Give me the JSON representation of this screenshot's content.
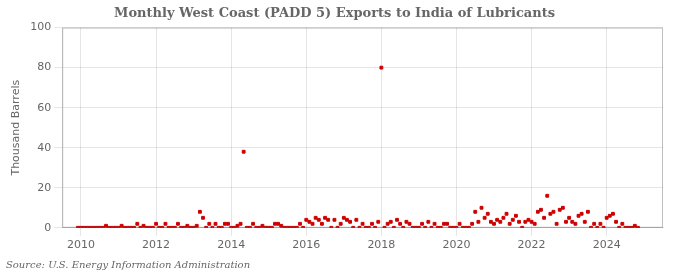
{
  "chart_data": {
    "type": "scatter",
    "title": "Monthly West Coast (PADD 5) Exports to India of Lubricants",
    "ylabel": "Thousand Barrels",
    "annotation": "Source: U.S. Energy Information Administration",
    "color": "#cc0000",
    "marker": "square",
    "grid": true,
    "xlim": [
      2009.5,
      2025.5
    ],
    "xticks": [
      2010,
      2012,
      2014,
      2016,
      2018,
      2020,
      2022,
      2024
    ],
    "ylim": [
      0,
      100
    ],
    "yticks": [
      0,
      20,
      40,
      60,
      80,
      100
    ],
    "x": [
      2009.917,
      2010,
      2010.083,
      2010.167,
      2010.25,
      2010.333,
      2010.417,
      2010.5,
      2010.583,
      2010.667,
      2010.75,
      2010.833,
      2010.917,
      2011,
      2011.083,
      2011.167,
      2011.25,
      2011.333,
      2011.417,
      2011.5,
      2011.583,
      2011.667,
      2011.75,
      2011.833,
      2011.917,
      2012,
      2012.083,
      2012.167,
      2012.25,
      2012.333,
      2012.417,
      2012.5,
      2012.583,
      2012.667,
      2012.75,
      2012.833,
      2012.917,
      2013,
      2013.083,
      2013.167,
      2013.25,
      2013.333,
      2013.417,
      2013.5,
      2013.583,
      2013.667,
      2013.75,
      2013.833,
      2013.917,
      2014,
      2014.083,
      2014.167,
      2014.25,
      2014.333,
      2014.417,
      2014.5,
      2014.583,
      2014.667,
      2014.75,
      2014.833,
      2014.917,
      2015,
      2015.083,
      2015.167,
      2015.25,
      2015.333,
      2015.417,
      2015.5,
      2015.583,
      2015.667,
      2015.75,
      2015.833,
      2015.917,
      2016,
      2016.083,
      2016.167,
      2016.25,
      2016.333,
      2016.417,
      2016.5,
      2016.583,
      2016.667,
      2016.75,
      2016.833,
      2016.917,
      2017,
      2017.083,
      2017.167,
      2017.25,
      2017.333,
      2017.417,
      2017.5,
      2017.583,
      2017.667,
      2017.75,
      2017.833,
      2017.917,
      2018,
      2018.083,
      2018.167,
      2018.25,
      2018.333,
      2018.417,
      2018.5,
      2018.583,
      2018.667,
      2018.75,
      2018.833,
      2018.917,
      2019,
      2019.083,
      2019.167,
      2019.25,
      2019.333,
      2019.417,
      2019.5,
      2019.583,
      2019.667,
      2019.75,
      2019.833,
      2019.917,
      2020,
      2020.083,
      2020.167,
      2020.25,
      2020.333,
      2020.417,
      2020.5,
      2020.583,
      2020.667,
      2020.75,
      2020.833,
      2020.917,
      2021,
      2021.083,
      2021.167,
      2021.25,
      2021.333,
      2021.417,
      2021.5,
      2021.583,
      2021.667,
      2021.75,
      2021.833,
      2021.917,
      2022,
      2022.083,
      2022.167,
      2022.25,
      2022.333,
      2022.417,
      2022.5,
      2022.583,
      2022.667,
      2022.75,
      2022.833,
      2022.917,
      2023,
      2023.083,
      2023.167,
      2023.25,
      2023.333,
      2023.417,
      2023.5,
      2023.583,
      2023.667,
      2023.75,
      2023.833,
      2023.917,
      2024,
      2024.083,
      2024.167,
      2024.25,
      2024.333,
      2024.417,
      2024.5,
      2024.583,
      2024.667,
      2024.75,
      2024.833
    ],
    "values": [
      0,
      0,
      0,
      0,
      0,
      0,
      0,
      0,
      0,
      1,
      0,
      0,
      0,
      0,
      1,
      0,
      0,
      0,
      0,
      2,
      0,
      1,
      0,
      0,
      0,
      2,
      0,
      0,
      2,
      0,
      0,
      0,
      2,
      0,
      0,
      1,
      0,
      0,
      1,
      8,
      5,
      0,
      2,
      0,
      2,
      0,
      0,
      2,
      2,
      0,
      0,
      1,
      2,
      38,
      0,
      0,
      2,
      0,
      0,
      1,
      0,
      0,
      0,
      2,
      2,
      1,
      0,
      0,
      0,
      0,
      0,
      2,
      0,
      4,
      3,
      2,
      5,
      4,
      2,
      5,
      4,
      0,
      4,
      0,
      2,
      5,
      4,
      3,
      0,
      4,
      0,
      2,
      0,
      0,
      2,
      0,
      3,
      80,
      0,
      2,
      3,
      0,
      4,
      2,
      0,
      3,
      2,
      0,
      0,
      0,
      2,
      0,
      3,
      0,
      2,
      0,
      0,
      2,
      2,
      0,
      0,
      0,
      2,
      0,
      0,
      0,
      2,
      8,
      3,
      10,
      5,
      7,
      3,
      2,
      4,
      3,
      5,
      7,
      2,
      4,
      6,
      3,
      0,
      3,
      4,
      3,
      2,
      8,
      9,
      5,
      16,
      7,
      8,
      2,
      9,
      10,
      3,
      5,
      3,
      2,
      6,
      7,
      3,
      8,
      0,
      2,
      0,
      2,
      0,
      5,
      6,
      7,
      3,
      0,
      2,
      0,
      0,
      0,
      1,
      0
    ]
  }
}
